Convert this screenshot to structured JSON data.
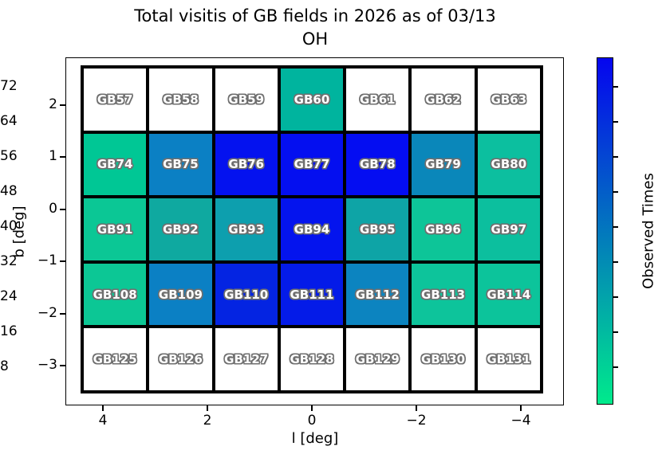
{
  "title": {
    "line1": "Total visitis of GB fields in 2026 as of 03/13",
    "line2": "OH"
  },
  "chart_data": {
    "type": "heatmap",
    "title": "Total visitis of GB fields in 2026 as of 03/13 OH",
    "xlabel": "l [deg]",
    "ylabel": "b [deg]",
    "x_ticks": [
      4,
      2,
      0,
      -2,
      -4
    ],
    "x_tick_labels": [
      "4",
      "2",
      "0",
      "−2",
      "−4"
    ],
    "y_ticks": [
      2,
      1,
      0,
      -1,
      -2,
      -3
    ],
    "y_tick_labels": [
      "2",
      "1",
      "0",
      "−1",
      "−2",
      "−3"
    ],
    "x_axis_inverted": true,
    "column_l_centers": [
      3.75,
      2.5,
      1.25,
      0,
      -1.25,
      -2.5,
      -3.75
    ],
    "row_b_centers": [
      2.1,
      0.85,
      -0.4,
      -1.65,
      -2.9
    ],
    "colormap": "winter_r (low=green, high=blue)",
    "colorbar": {
      "label": "Observed Times",
      "ticks": [
        8,
        16,
        24,
        32,
        40,
        48,
        56,
        64,
        72
      ],
      "low_color": "#00ea8c",
      "high_color": "#0505ef"
    },
    "unobserved_color": "#ffffff",
    "rows": [
      {
        "b": 2.1,
        "cells": [
          {
            "label": "GB57",
            "value": 0,
            "color": "#ffffff"
          },
          {
            "label": "GB58",
            "value": 0,
            "color": "#ffffff"
          },
          {
            "label": "GB59",
            "value": 0,
            "color": "#ffffff"
          },
          {
            "label": "GB60",
            "value": 21,
            "color": "#00b49e"
          },
          {
            "label": "GB61",
            "value": 0,
            "color": "#ffffff"
          },
          {
            "label": "GB62",
            "value": 0,
            "color": "#ffffff"
          },
          {
            "label": "GB63",
            "value": 0,
            "color": "#ffffff"
          }
        ]
      },
      {
        "b": 0.85,
        "cells": [
          {
            "label": "GB74",
            "value": 15,
            "color": "#00c795"
          },
          {
            "label": "GB75",
            "value": 40,
            "color": "#0b80c4"
          },
          {
            "label": "GB76",
            "value": 70,
            "color": "#0412ef"
          },
          {
            "label": "GB77",
            "value": 71,
            "color": "#040ff0"
          },
          {
            "label": "GB78",
            "value": 72,
            "color": "#040df2"
          },
          {
            "label": "GB79",
            "value": 36,
            "color": "#0a87ba"
          },
          {
            "label": "GB80",
            "value": 19,
            "color": "#0cbf9f"
          }
        ]
      },
      {
        "b": -0.4,
        "cells": [
          {
            "label": "GB91",
            "value": 16,
            "color": "#0bc795"
          },
          {
            "label": "GB92",
            "value": 24,
            "color": "#0fa9a0"
          },
          {
            "label": "GB93",
            "value": 27,
            "color": "#0d9fae"
          },
          {
            "label": "GB94",
            "value": 71,
            "color": "#0414ee"
          },
          {
            "label": "GB95",
            "value": 26,
            "color": "#0ea4a6"
          },
          {
            "label": "GB96",
            "value": 17,
            "color": "#0dc598"
          },
          {
            "label": "GB97",
            "value": 19,
            "color": "#0cbf9e"
          }
        ]
      },
      {
        "b": -1.65,
        "cells": [
          {
            "label": "GB108",
            "value": 16,
            "color": "#0cc795"
          },
          {
            "label": "GB109",
            "value": 40,
            "color": "#0b80c4"
          },
          {
            "label": "GB110",
            "value": 66,
            "color": "#0424e2"
          },
          {
            "label": "GB111",
            "value": 68,
            "color": "#041be8"
          },
          {
            "label": "GB112",
            "value": 39,
            "color": "#0c84c0"
          },
          {
            "label": "GB113",
            "value": 17,
            "color": "#0dc49b"
          },
          {
            "label": "GB114",
            "value": 17,
            "color": "#0cc49b"
          }
        ]
      },
      {
        "b": -2.9,
        "cells": [
          {
            "label": "GB125",
            "value": 0,
            "color": "#ffffff"
          },
          {
            "label": "GB126",
            "value": 0,
            "color": "#ffffff"
          },
          {
            "label": "GB127",
            "value": 0,
            "color": "#ffffff"
          },
          {
            "label": "GB128",
            "value": 0,
            "color": "#ffffff"
          },
          {
            "label": "GB129",
            "value": 0,
            "color": "#ffffff"
          },
          {
            "label": "GB130",
            "value": 0,
            "color": "#ffffff"
          },
          {
            "label": "GB131",
            "value": 0,
            "color": "#ffffff"
          }
        ]
      }
    ]
  }
}
